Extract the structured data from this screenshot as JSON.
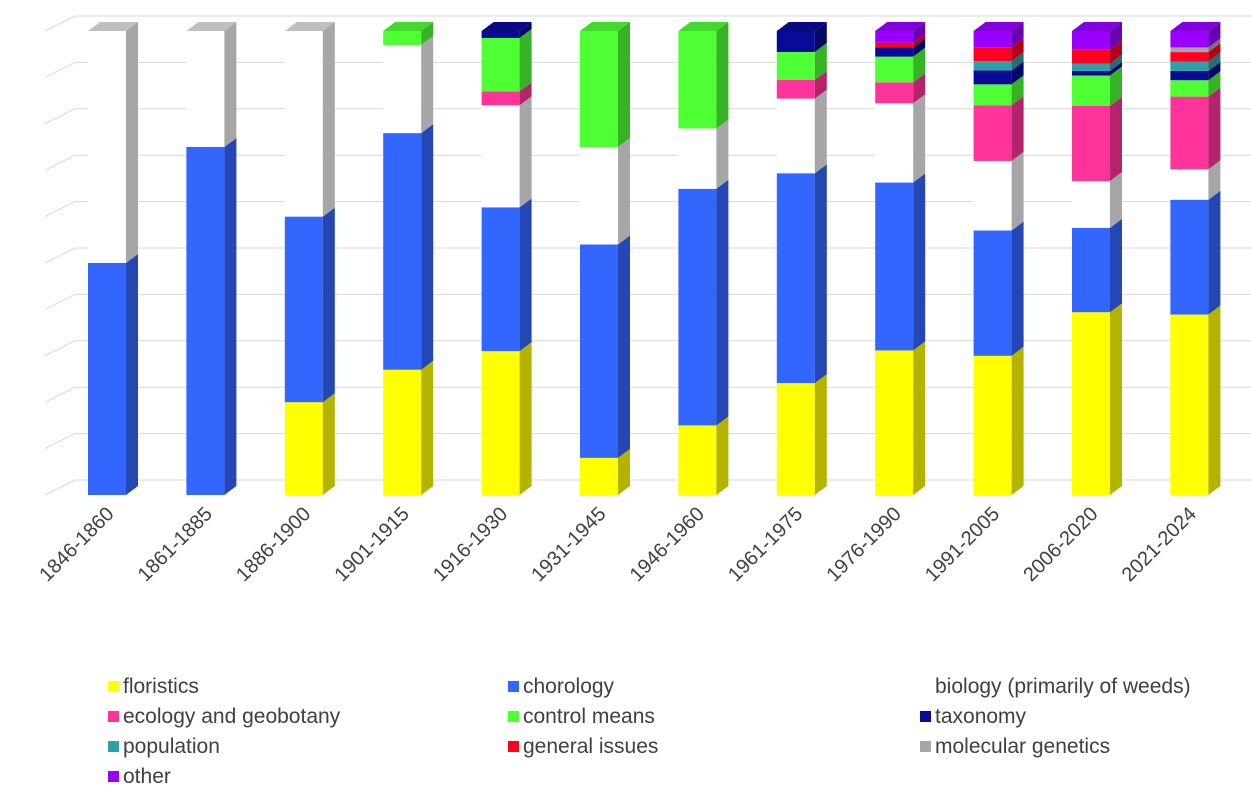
{
  "chart_data": {
    "type": "bar",
    "stacked": "percent",
    "grid": true,
    "legend_position": "bottom",
    "ylim": [
      0,
      100
    ],
    "categories": [
      "1846-1860",
      "1861-1885",
      "1886-1900",
      "1901-1915",
      "1916-1930",
      "1931-1945",
      "1946-1960",
      "1961-1975",
      "1976-1990",
      "1991-2005",
      "2006-2020",
      "2021-2024"
    ],
    "series": [
      {
        "name": "floristics",
        "color": "#ffff00",
        "values": [
          0,
          0,
          20,
          27,
          31,
          8,
          15,
          24,
          31,
          30,
          39,
          38.5
        ]
      },
      {
        "name": "chorology",
        "color": "#3366ff",
        "values": [
          50,
          75,
          40,
          51,
          31,
          46,
          51,
          45,
          36,
          27,
          18,
          24.5
        ]
      },
      {
        "name": "biology (primarily of weeds)",
        "color": "#ffffff",
        "values": [
          50,
          25,
          40,
          19,
          22,
          21,
          13,
          16,
          17,
          15,
          10,
          6.5
        ]
      },
      {
        "name": "ecology and geobotany",
        "color": "#ff3399",
        "values": [
          0,
          0,
          0,
          0,
          3,
          0,
          0,
          4,
          4.5,
          12,
          16,
          15.5
        ]
      },
      {
        "name": "control means",
        "color": "#4dff33",
        "values": [
          0,
          0,
          0,
          3,
          11.5,
          25,
          21,
          6,
          5.5,
          4.5,
          6.5,
          3.5
        ]
      },
      {
        "name": "taxonomy",
        "color": "#0a0a99",
        "values": [
          0,
          0,
          0,
          0,
          1.5,
          0,
          0,
          4.5,
          2,
          3,
          1,
          2
        ]
      },
      {
        "name": "population",
        "color": "#2ea0a8",
        "values": [
          0,
          0,
          0,
          0,
          0,
          0,
          0,
          0,
          0,
          2,
          1.5,
          2
        ]
      },
      {
        "name": "general issues",
        "color": "#ff0022",
        "values": [
          0,
          0,
          0,
          0,
          0,
          0,
          0,
          0,
          1,
          3,
          3,
          2
        ]
      },
      {
        "name": "molecular genetics",
        "color": "#a6a6a6",
        "values": [
          0,
          0,
          0,
          0,
          0,
          0,
          0,
          0,
          0,
          0,
          0,
          1
        ]
      },
      {
        "name": "other",
        "color": "#9900ff",
        "values": [
          0,
          0,
          0,
          0,
          0,
          0,
          0,
          0,
          2.5,
          3.5,
          4,
          3.5
        ]
      }
    ]
  }
}
